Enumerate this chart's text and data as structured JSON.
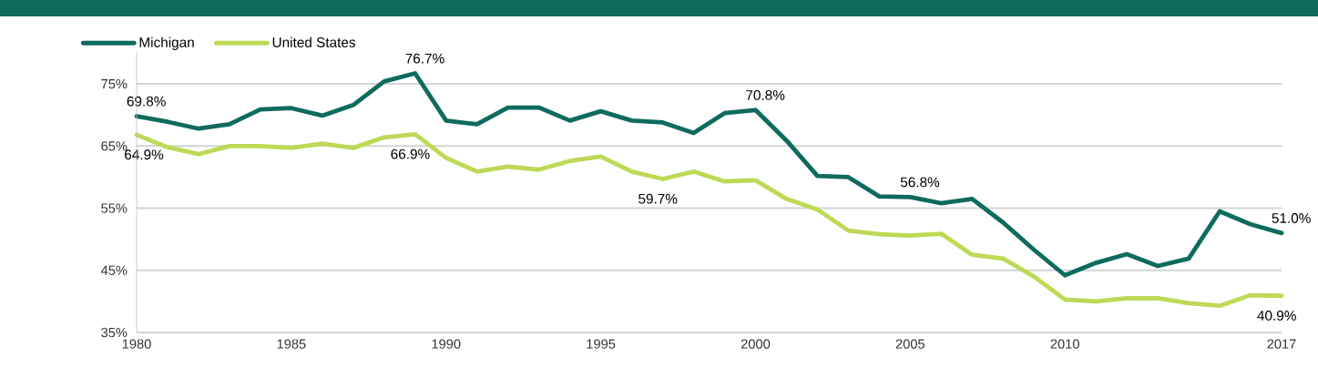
{
  "chart_data": {
    "type": "line",
    "x": [
      1980,
      1981,
      1982,
      1983,
      1984,
      1985,
      1986,
      1987,
      1988,
      1989,
      1990,
      1991,
      1992,
      1993,
      1994,
      1995,
      1996,
      1997,
      1998,
      1999,
      2000,
      2001,
      2002,
      2003,
      2004,
      2005,
      2006,
      2007,
      2008,
      2009,
      2010,
      2011,
      2012,
      2013,
      2014,
      2015,
      2016,
      2017
    ],
    "series": [
      {
        "name": "Michigan",
        "color": "#0e6b5e",
        "values": [
          69.8,
          68.9,
          67.8,
          68.5,
          70.9,
          71.1,
          69.9,
          71.6,
          75.4,
          76.7,
          69.1,
          68.5,
          71.2,
          71.2,
          69.1,
          70.6,
          69.1,
          68.8,
          67.1,
          70.3,
          70.8,
          65.9,
          60.2,
          60.0,
          56.9,
          56.8,
          55.8,
          56.5,
          52.7,
          48.3,
          44.2,
          46.2,
          47.6,
          45.7,
          46.9,
          54.5,
          52.4,
          51.0
        ]
      },
      {
        "name": "United States",
        "color": "#bdd956",
        "values": [
          66.8,
          64.8,
          63.7,
          65.0,
          65.0,
          64.7,
          65.4,
          64.7,
          66.4,
          66.9,
          63.1,
          60.9,
          61.7,
          61.2,
          62.6,
          63.3,
          60.9,
          59.7,
          60.9,
          59.3,
          59.5,
          56.5,
          54.8,
          51.4,
          50.8,
          50.6,
          50.9,
          47.5,
          46.9,
          44.0,
          40.3,
          40.0,
          40.5,
          40.5,
          39.7,
          39.3,
          41.0,
          40.9
        ]
      }
    ],
    "xlim": [
      1980,
      2017
    ],
    "xticks": [
      1980,
      1985,
      1990,
      1995,
      2000,
      2005,
      2010,
      2017
    ],
    "ylim": [
      35,
      80
    ],
    "yticks": [
      {
        "value": 35,
        "label": "35%"
      },
      {
        "value": 45,
        "label": "45%"
      },
      {
        "value": 55,
        "label": "55%"
      },
      {
        "value": 65,
        "label": "65%"
      },
      {
        "value": 75,
        "label": "75%"
      }
    ],
    "grid": "y",
    "legend": "top left",
    "marker": "none",
    "line_style": "solid",
    "annotations": [
      {
        "text": "69.8%",
        "x": 1980,
        "y": 69.8
      },
      "64.9%",
      {
        "text": "76.7%",
        "x": 1989,
        "y": 76.7
      },
      {
        "text": "66.9%",
        "x": 1989,
        "y": 66.9
      },
      {
        "text": "59.7%",
        "x": 1997,
        "y": 59.7
      },
      {
        "text": "70.8%",
        "x": 2000,
        "y": 70.8
      },
      {
        "text": "56.8%",
        "x": 2005,
        "y": 56.8
      },
      {
        "text": "51.0%",
        "x": 2017,
        "y": 51.0
      },
      {
        "text": "40.9%",
        "x": 2017,
        "y": 40.9
      }
    ]
  }
}
